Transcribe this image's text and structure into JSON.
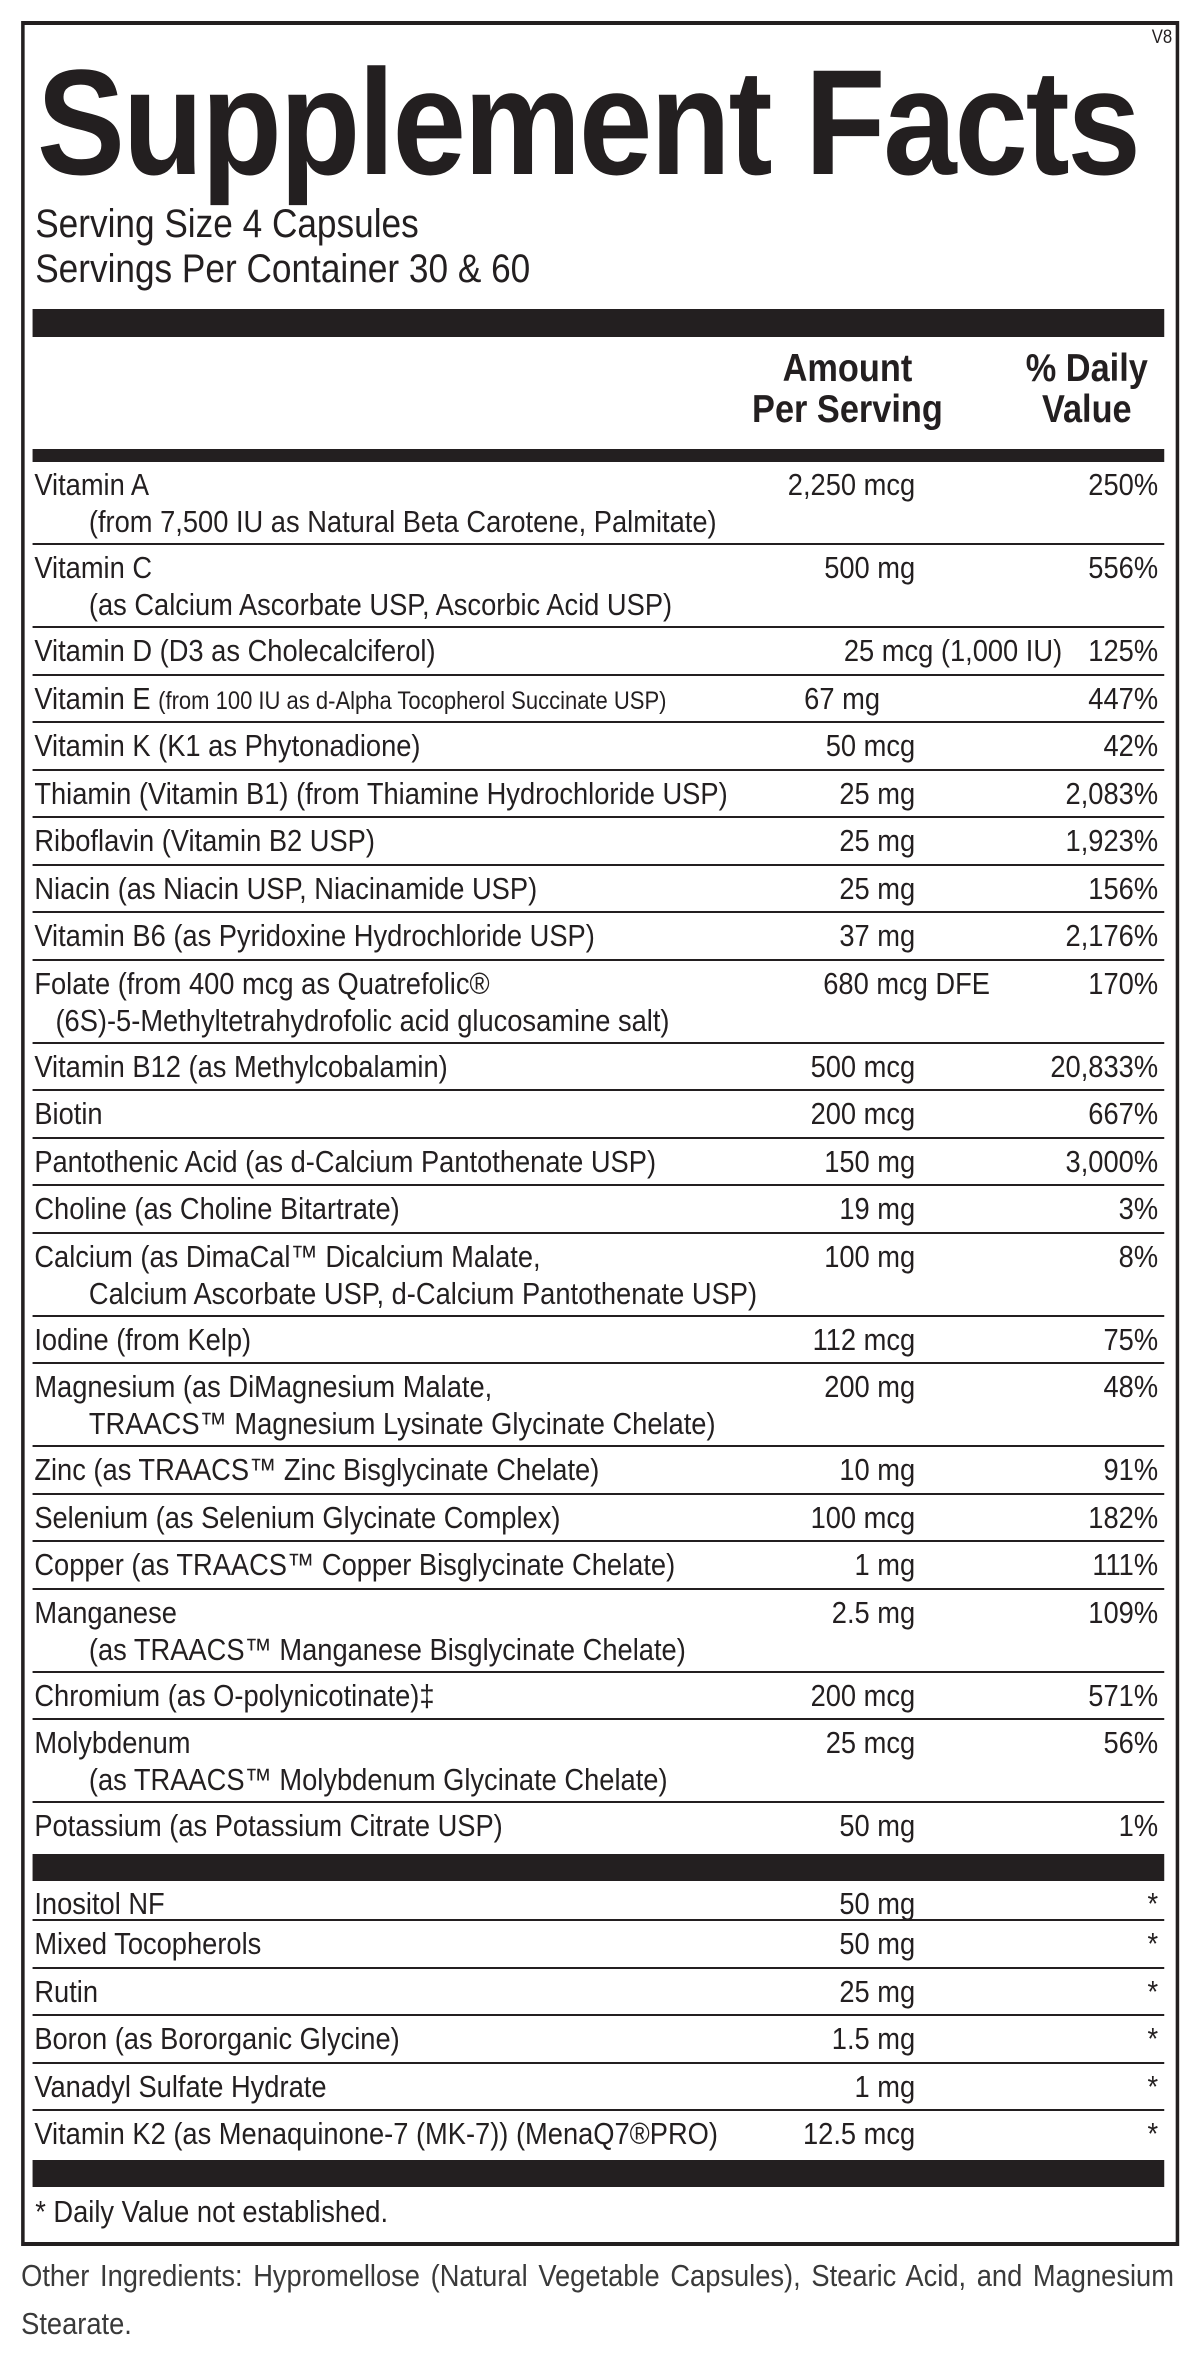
{
  "version": "V8",
  "title": "Supplement Facts",
  "serving_size": "Serving Size 4 Capsules",
  "servings_per_container": "Servings Per Container 30 & 60",
  "headers": {
    "amount_line1": "Amount",
    "amount_line2": "Per Serving",
    "dv_line1": "% Daily",
    "dv_line2": "Value"
  },
  "nutrients": [
    {
      "name": "Vitamin A",
      "sub": "(from 7,500 IU as Natural Beta Carotene, Palmitate)",
      "amount": "2,250 mcg",
      "dv": "250%"
    },
    {
      "name": "Vitamin C",
      "sub": "(as Calcium Ascorbate USP, Ascorbic Acid USP)",
      "amount": "500 mg",
      "dv": "556%"
    },
    {
      "name": "Vitamin D (D3 as Cholecalciferol)",
      "amount": "25 mcg (1,000 IU)",
      "dv": "125%"
    },
    {
      "name": "Vitamin E",
      "name_small": "(from 100 IU as d-Alpha Tocopherol Succinate USP)",
      "amount": "67 mg",
      "dv": "447%"
    },
    {
      "name": "Vitamin K (K1 as Phytonadione)",
      "amount": "50 mcg",
      "dv": "42%"
    },
    {
      "name": "Thiamin (Vitamin B1) (from Thiamine Hydrochloride USP)",
      "amount": "25 mg",
      "dv": "2,083%"
    },
    {
      "name": "Riboflavin (Vitamin B2 USP)",
      "amount": "25 mg",
      "dv": "1,923%"
    },
    {
      "name": "Niacin (as Niacin USP, Niacinamide USP)",
      "amount": "25 mg",
      "dv": "156%"
    },
    {
      "name": "Vitamin B6 (as Pyridoxine Hydrochloride USP)",
      "amount": "37 mg",
      "dv": "2,176%"
    },
    {
      "name": "Folate (from 400 mcg as Quatrefolic®",
      "sub": "(6S)-5-Methyltetrahydrofolic acid glucosamine salt)",
      "amount": "680 mcg DFE",
      "dv": "170%"
    },
    {
      "name": "Vitamin B12 (as Methylcobalamin)",
      "amount": "500 mcg",
      "dv": "20,833%"
    },
    {
      "name": "Biotin",
      "amount": "200 mcg",
      "dv": "667%"
    },
    {
      "name": "Pantothenic Acid (as d-Calcium Pantothenate USP)",
      "amount": "150 mg",
      "dv": "3,000%"
    },
    {
      "name": "Choline (as Choline Bitartrate)",
      "amount": "19 mg",
      "dv": "3%"
    },
    {
      "name": "Calcium (as DimaCal™ Dicalcium Malate,",
      "sub": "Calcium Ascorbate USP, d-Calcium Pantothenate USP)",
      "amount": "100 mg",
      "dv": "8%"
    },
    {
      "name": "Iodine (from Kelp)",
      "amount": "112 mcg",
      "dv": "75%"
    },
    {
      "name": "Magnesium (as DiMagnesium Malate,",
      "sub": "TRAACS™ Magnesium Lysinate Glycinate Chelate)",
      "amount": "200 mg",
      "dv": "48%"
    },
    {
      "name": "Zinc (as TRAACS™ Zinc Bisglycinate Chelate)",
      "amount": "10 mg",
      "dv": "91%"
    },
    {
      "name": "Selenium (as Selenium Glycinate Complex)",
      "amount": "100 mcg",
      "dv": "182%"
    },
    {
      "name": "Copper (as TRAACS™ Copper Bisglycinate Chelate)",
      "amount": "1 mg",
      "dv": "111%"
    },
    {
      "name": "Manganese",
      "sub": "(as TRAACS™ Manganese Bisglycinate Chelate)",
      "amount": "2.5 mg",
      "dv": "109%"
    },
    {
      "name": "Chromium (as O-polynicotinate)‡",
      "amount": "200 mcg",
      "dv": "571%"
    },
    {
      "name": "Molybdenum",
      "sub": "(as TRAACS™ Molybdenum Glycinate Chelate)",
      "amount": "25 mcg",
      "dv": "56%"
    },
    {
      "name": "Potassium (as Potassium Citrate USP)",
      "amount": "50 mg",
      "dv": "1%"
    }
  ],
  "other_nutrients": [
    {
      "name": "Inositol NF",
      "amount": "50 mg",
      "dv": "*"
    },
    {
      "name": "Mixed Tocopherols",
      "amount": "50 mg",
      "dv": "*"
    },
    {
      "name": "Rutin",
      "amount": "25 mg",
      "dv": "*"
    },
    {
      "name": "Boron (as Bororganic Glycine)",
      "amount": "1.5 mg",
      "dv": "*"
    },
    {
      "name": "Vanadyl Sulfate Hydrate",
      "amount": "1 mg",
      "dv": "*"
    },
    {
      "name": "Vitamin K2 (as Menaquinone-7 (MK-7)) (MenaQ7®PRO)",
      "amount": "12.5 mcg",
      "dv": "*"
    }
  ],
  "footnote": "* Daily Value not established.",
  "other_ingredients": "Other Ingredients:  Hypromellose (Natural Vegetable Capsules), Stearic Acid, and Magnesium Stearate.",
  "colors": {
    "ink": "#231f20",
    "background": "#ffffff"
  }
}
